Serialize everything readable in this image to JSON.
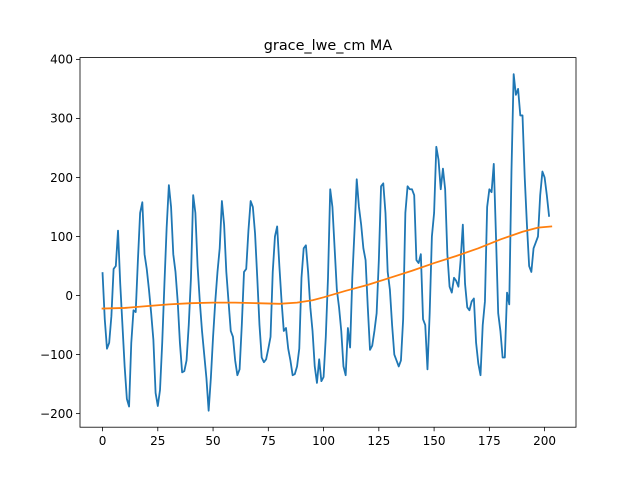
{
  "chart_data": {
    "type": "line",
    "title": "grace_lwe_cm MA",
    "xlabel": "",
    "ylabel": "",
    "xlim": [
      -10.2,
      214.2
    ],
    "ylim": [
      -223,
      403
    ],
    "xticks": [
      0,
      25,
      50,
      75,
      100,
      125,
      150,
      175,
      200
    ],
    "yticks": [
      -200,
      -100,
      0,
      100,
      200,
      300,
      400
    ],
    "grid": false,
    "legend": "none",
    "series": [
      {
        "color": "#1f77b4",
        "values": [
          38,
          -40,
          -90,
          -80,
          -35,
          45,
          50,
          110,
          20,
          -50,
          -120,
          -175,
          -188,
          -80,
          -25,
          -28,
          60,
          140,
          158,
          70,
          45,
          10,
          -30,
          -75,
          -165,
          -187,
          -160,
          -80,
          20,
          115,
          187,
          150,
          70,
          40,
          -10,
          -80,
          -130,
          -128,
          -110,
          -50,
          30,
          170,
          140,
          50,
          -10,
          -60,
          -100,
          -140,
          -195,
          -140,
          -70,
          -10,
          40,
          80,
          160,
          120,
          40,
          -10,
          -60,
          -70,
          -110,
          -135,
          -125,
          -50,
          40,
          45,
          110,
          160,
          150,
          105,
          30,
          -50,
          -105,
          -113,
          -108,
          -90,
          -70,
          40,
          100,
          117,
          50,
          -10,
          -60,
          -55,
          -90,
          -110,
          -135,
          -133,
          -120,
          -90,
          30,
          80,
          85,
          40,
          -20,
          -60,
          -120,
          -148,
          -108,
          -145,
          -138,
          -70,
          30,
          180,
          150,
          80,
          10,
          -20,
          -60,
          -120,
          -135,
          -55,
          -88,
          30,
          110,
          197,
          150,
          120,
          80,
          60,
          -20,
          -92,
          -85,
          -60,
          -30,
          60,
          185,
          190,
          140,
          40,
          10,
          -50,
          -100,
          -110,
          -120,
          -110,
          -40,
          140,
          185,
          180,
          180,
          170,
          60,
          55,
          70,
          -40,
          -50,
          -125,
          -30,
          100,
          140,
          252,
          230,
          180,
          215,
          180,
          70,
          15,
          5,
          30,
          25,
          15,
          60,
          120,
          20,
          -20,
          -25,
          -10,
          -5,
          -80,
          -115,
          -135,
          -50,
          -10,
          150,
          180,
          175,
          223,
          100,
          -30,
          -60,
          -105,
          -105,
          5,
          -15,
          210,
          375,
          340,
          350,
          305,
          305,
          200,
          120,
          50,
          40,
          80,
          90,
          100,
          170,
          210,
          200,
          170,
          135
        ]
      },
      {
        "color": "#ff7f0e",
        "points": [
          [
            0,
            -22
          ],
          [
            10,
            -21
          ],
          [
            20,
            -18
          ],
          [
            30,
            -15
          ],
          [
            40,
            -13
          ],
          [
            50,
            -12
          ],
          [
            60,
            -12
          ],
          [
            70,
            -13
          ],
          [
            80,
            -14
          ],
          [
            88,
            -12
          ],
          [
            95,
            -8
          ],
          [
            100,
            -3
          ],
          [
            110,
            8
          ],
          [
            120,
            18
          ],
          [
            130,
            30
          ],
          [
            140,
            42
          ],
          [
            150,
            55
          ],
          [
            160,
            67
          ],
          [
            170,
            80
          ],
          [
            180,
            95
          ],
          [
            190,
            108
          ],
          [
            197,
            115
          ],
          [
            203,
            117
          ]
        ]
      }
    ]
  }
}
